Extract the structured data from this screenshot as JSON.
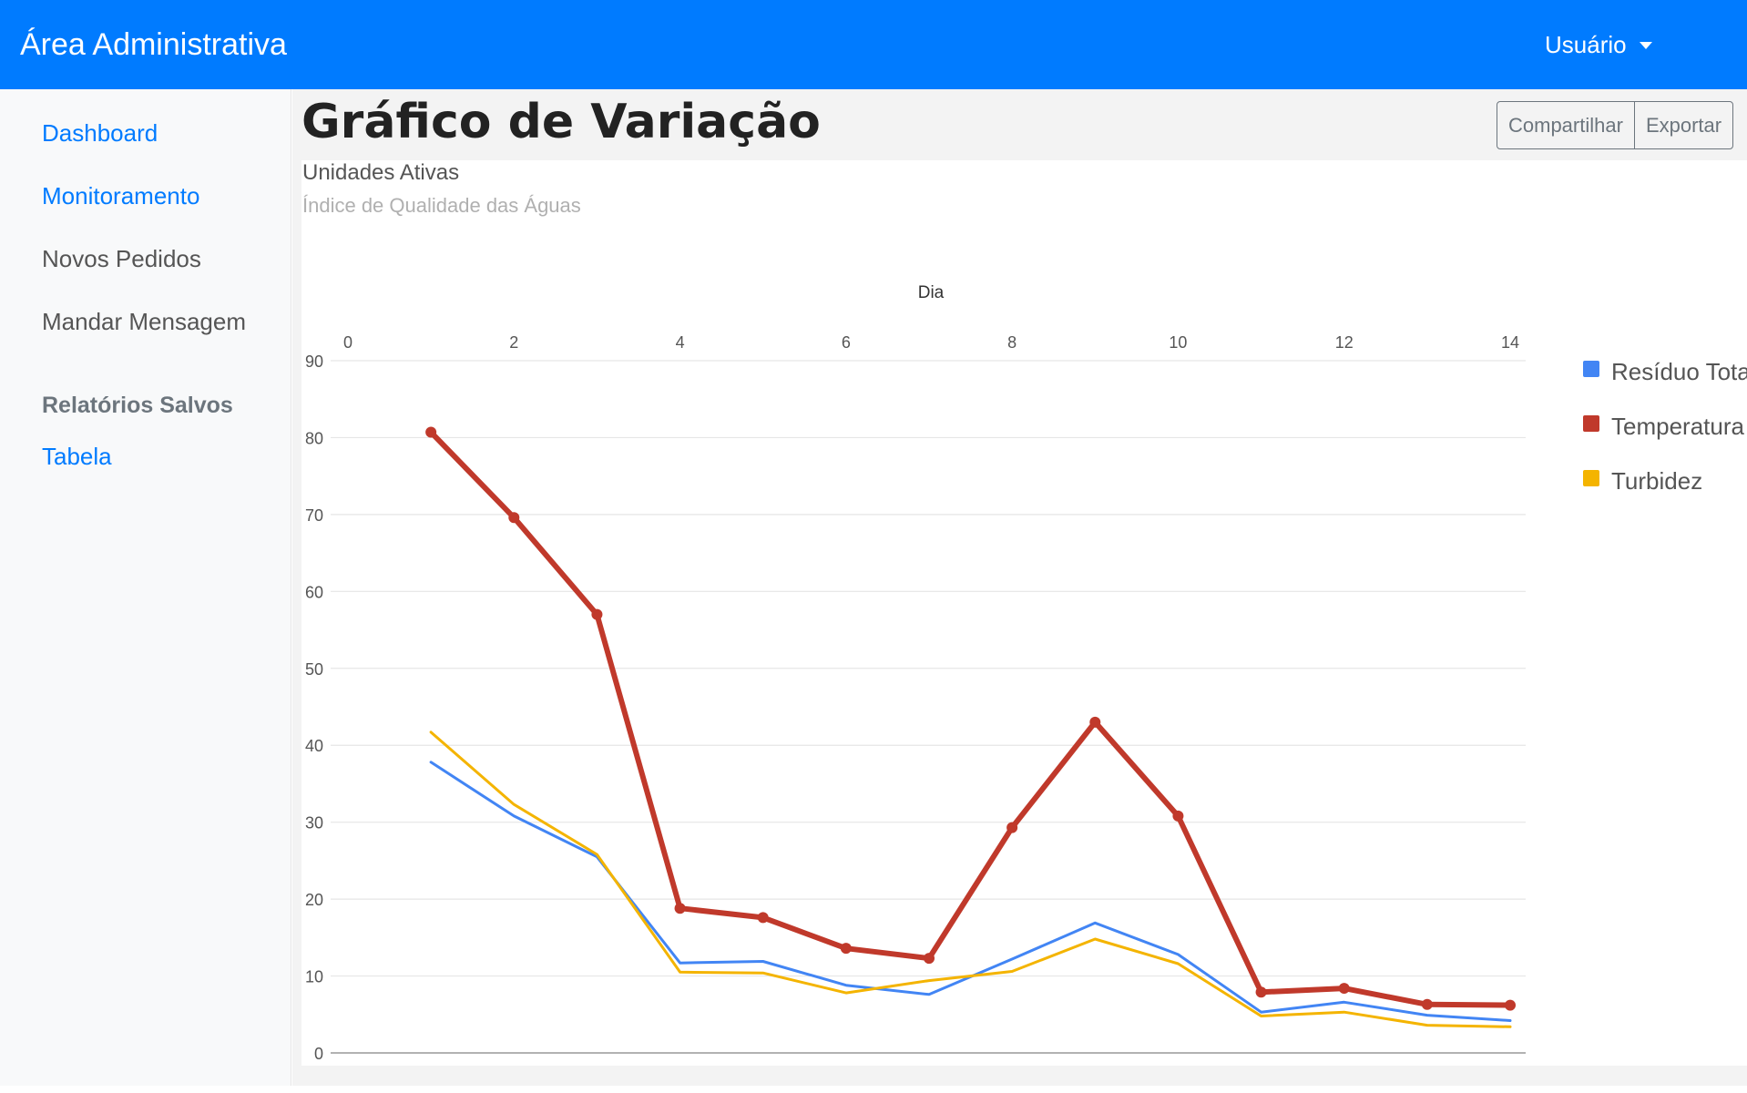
{
  "navbar": {
    "brand": "Área Administrativa",
    "user_label": "Usuário",
    "user_caret_icon": "caret-down-icon",
    "background_color": "#007bff"
  },
  "sidebar": {
    "items": [
      {
        "label": "Dashboard",
        "style": "link"
      },
      {
        "label": "Monitoramento",
        "style": "link"
      },
      {
        "label": "Novos Pedidos",
        "style": "muted"
      },
      {
        "label": "Mandar Mensagem",
        "style": "muted"
      }
    ],
    "saved_heading": "Relatórios Salvos",
    "saved_items": [
      {
        "label": "Tabela",
        "style": "link"
      }
    ]
  },
  "main": {
    "title": "Gráfico de Variação",
    "buttons": {
      "share": "Compartilhar",
      "export": "Exportar"
    }
  },
  "chart_data": {
    "type": "line",
    "title": "Unidades Ativas",
    "subtitle": "Índice de Qualidade das Águas",
    "xlabel": "Dia",
    "ylabel": "",
    "x_axis_position": "top",
    "x_ticks": [
      0,
      2,
      4,
      6,
      8,
      10,
      12,
      14
    ],
    "y_ticks": [
      0,
      10,
      20,
      30,
      40,
      50,
      60,
      70,
      80,
      90
    ],
    "xlim": [
      0,
      14
    ],
    "ylim": [
      0,
      90
    ],
    "grid": true,
    "legend_position": "right",
    "x": [
      1,
      2,
      3,
      4,
      5,
      6,
      7,
      8,
      9,
      10,
      11,
      12,
      13,
      14
    ],
    "series": [
      {
        "name": "Resíduo Total",
        "color": "#4285f4",
        "markers": false,
        "values": [
          37.8,
          30.8,
          25.5,
          11.7,
          11.9,
          8.8,
          7.6,
          12.2,
          16.9,
          12.8,
          5.3,
          6.6,
          4.9,
          4.2
        ]
      },
      {
        "name": "Temperatura",
        "color": "#c0392b",
        "markers": true,
        "values": [
          80.7,
          69.6,
          57.0,
          18.8,
          17.6,
          13.6,
          12.3,
          29.3,
          43.0,
          30.8,
          7.9,
          8.4,
          6.3,
          6.2
        ]
      },
      {
        "name": "Turbidez",
        "color": "#f4b400",
        "markers": false,
        "values": [
          41.7,
          32.3,
          25.8,
          10.5,
          10.4,
          7.8,
          9.4,
          10.6,
          14.8,
          11.6,
          4.8,
          5.3,
          3.6,
          3.4
        ]
      }
    ]
  }
}
